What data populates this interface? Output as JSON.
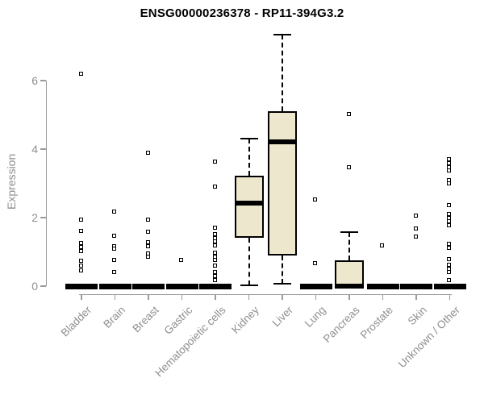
{
  "chart_data": {
    "type": "boxplot",
    "title": "ENSG00000236378 - RP11-394G3.2",
    "ylabel": "Expression",
    "xlabel": "",
    "yticks": [
      0,
      2,
      4,
      6
    ],
    "ylim": [
      0,
      7.4
    ],
    "grid": false,
    "legend": "none",
    "box_fill": "#ede8cd",
    "box_border": "#000000",
    "axis_color": "#9a9a9a",
    "label_color": "#8f8f8f",
    "categories": [
      "Bladder",
      "Brain",
      "Breast",
      "Gastric",
      "Hematopoietic cells",
      "Kidney",
      "Liver",
      "Lung",
      "Pancreas",
      "Prostate",
      "Skin",
      "Unknown / Other"
    ],
    "series": [
      {
        "category": "Bladder",
        "whisker_low": 0,
        "q1": 0,
        "median": 0,
        "q3": 0,
        "whisker_high": 0,
        "outliers": [
          6.18,
          1.93,
          1.6,
          1.25,
          1.13,
          1.01,
          0.73,
          0.59,
          0.45
        ]
      },
      {
        "category": "Brain",
        "whisker_low": 0,
        "q1": 0,
        "median": 0,
        "q3": 0,
        "whisker_high": 0,
        "outliers": [
          2.16,
          1.46,
          1.15,
          1.08,
          0.75,
          0.4
        ]
      },
      {
        "category": "Breast",
        "whisker_low": 0,
        "q1": 0,
        "median": 0,
        "q3": 0,
        "whisker_high": 0,
        "outliers": [
          3.88,
          1.93,
          1.58,
          1.27,
          1.15,
          0.94,
          0.85
        ]
      },
      {
        "category": "Gastric",
        "whisker_low": 0,
        "q1": 0,
        "median": 0,
        "q3": 0,
        "whisker_high": 0,
        "outliers": [
          0.75
        ]
      },
      {
        "category": "Hematopoietic cells",
        "whisker_low": 0,
        "q1": 0,
        "median": 0,
        "q3": 0,
        "whisker_high": 0,
        "outliers": [
          3.62,
          2.89,
          1.69,
          1.51,
          1.39,
          1.29,
          1.18,
          0.96,
          0.85,
          0.75,
          0.59,
          0.4,
          0.28,
          0.16
        ]
      },
      {
        "category": "Kidney",
        "whisker_low": 0.03,
        "q1": 1.41,
        "median": 2.42,
        "q3": 3.22,
        "whisker_high": 4.31,
        "outliers": []
      },
      {
        "category": "Liver",
        "whisker_low": 0.07,
        "q1": 0.89,
        "median": 4.21,
        "q3": 5.11,
        "whisker_high": 7.34,
        "outliers": []
      },
      {
        "category": "Lung",
        "whisker_low": 0,
        "q1": 0,
        "median": 0,
        "q3": 0,
        "whisker_high": 0,
        "outliers": [
          2.52,
          0.66
        ]
      },
      {
        "category": "Pancreas",
        "whisker_low": 0,
        "q1": 0,
        "median": 0,
        "q3": 0.75,
        "whisker_high": 1.58,
        "outliers": [
          5.01,
          3.46
        ]
      },
      {
        "category": "Prostate",
        "whisker_low": 0,
        "q1": 0,
        "median": 0,
        "q3": 0,
        "whisker_high": 0,
        "outliers": [
          1.18
        ]
      },
      {
        "category": "Skin",
        "whisker_low": 0,
        "q1": 0,
        "median": 0,
        "q3": 0,
        "whisker_high": 0,
        "outliers": [
          2.05,
          1.67,
          1.43
        ]
      },
      {
        "category": "Unknown / Other",
        "whisker_low": 0,
        "q1": 0,
        "median": 0,
        "q3": 0,
        "whisker_high": 0,
        "outliers": [
          3.69,
          3.58,
          3.46,
          3.36,
          3.08,
          2.99,
          2.35,
          2.09,
          1.98,
          1.88,
          1.76,
          1.22,
          1.11,
          0.78,
          0.61,
          0.49,
          0.4,
          0.16
        ]
      }
    ]
  }
}
